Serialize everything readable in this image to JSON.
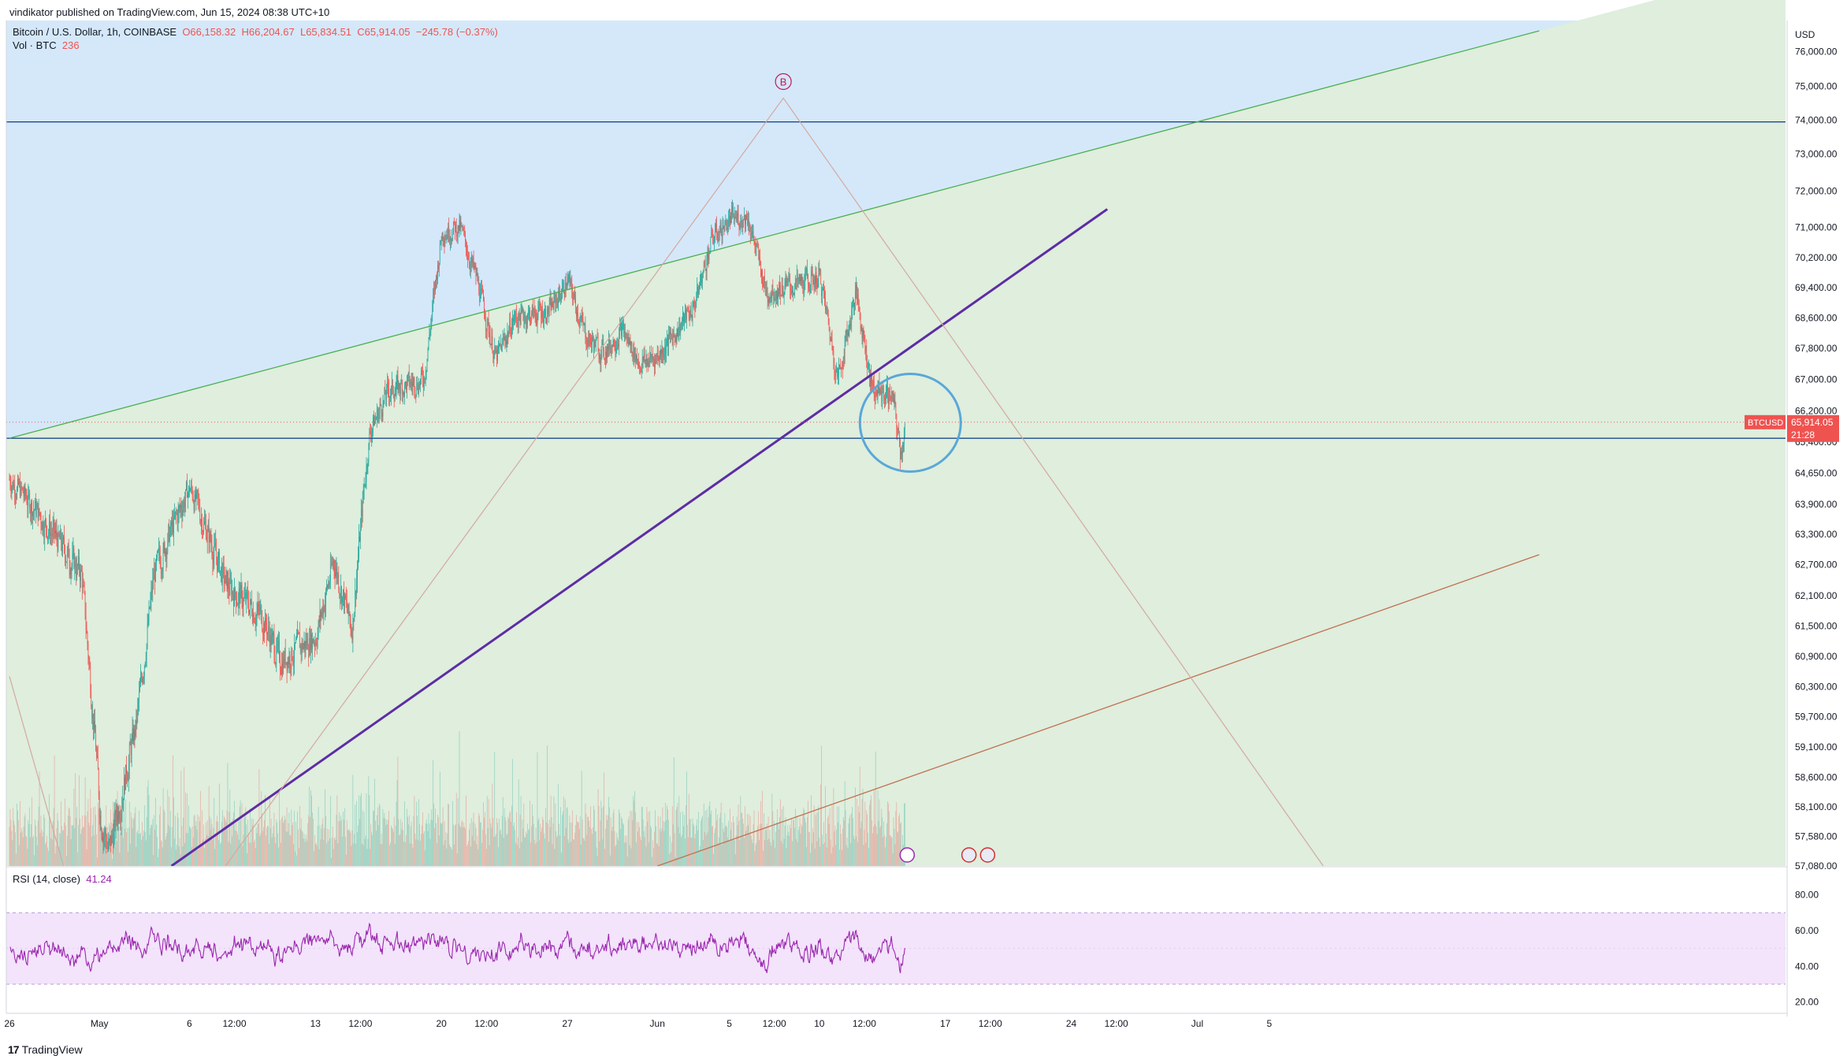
{
  "header": "vindikator published on TradingView.com, Jun 15, 2024 08:38 UTC+10",
  "legend": {
    "symbol": "Bitcoin / U.S. Dollar, 1h, COINBASE",
    "open": "O66,158.32",
    "high": "H66,204.67",
    "low": "L65,834.51",
    "close": "C65,914.05",
    "change": "−245.78 (−0.37%)",
    "vol_label": "Vol · BTC",
    "vol_value": "236",
    "rsi_label": "RSI (14, close)",
    "rsi_value": "41.24"
  },
  "price_axis": {
    "currency": "USD",
    "ticks": [
      "76,000.00",
      "75,000.00",
      "74,000.00",
      "73,000.00",
      "72,000.00",
      "71,000.00",
      "70,200.00",
      "69,400.00",
      "68,600.00",
      "67,800.00",
      "67,000.00",
      "66,200.00",
      "65,400.00",
      "64,650.00",
      "63,900.00",
      "63,300.00",
      "62,700.00",
      "62,100.00",
      "61,500.00",
      "60,900.00",
      "60,300.00",
      "59,700.00",
      "59,100.00",
      "58,600.00",
      "58,100.00",
      "57,580.00",
      "57,080.00"
    ],
    "last_symbol": "BTCUSD",
    "last_price": "65,914.05",
    "countdown": "21:28"
  },
  "rsi_axis": {
    "ticks": [
      "80.00",
      "60.00",
      "40.00",
      "20.00"
    ]
  },
  "time_axis": {
    "ticks": [
      "26",
      "May",
      "6",
      "12:00",
      "13",
      "12:00",
      "20",
      "12:00",
      "27",
      "Jun",
      "5",
      "12:00",
      "10",
      "12:00",
      "17",
      "12:00",
      "24",
      "12:00",
      "Jul",
      "5"
    ]
  },
  "annotation": {
    "wave_label": "B"
  },
  "colors": {
    "up": "#26a69a",
    "down": "#ef5350",
    "purple_line": "#5e2ca5",
    "green_line": "#4caf50",
    "brown_line": "#c0704f",
    "blue_line": "#1e4a8c",
    "sky": "#d4e8fa",
    "grass": "#dfeedd",
    "rsi": "#9c27b0",
    "rsi_band": "#f3e3fb"
  },
  "footer": {
    "brand": "TradingView"
  },
  "chart_data": {
    "type": "candlestick",
    "symbol": "Bitcoin / U.S. Dollar",
    "interval": "1h",
    "exchange": "COINBASE",
    "ylim": [
      57080,
      76300
    ],
    "x_range": [
      "Apr 26 2024",
      "Jul 5 2024"
    ],
    "path_points": [
      {
        "t": "Apr 26",
        "price": 64500
      },
      {
        "t": "Apr 28",
        "price": 63500
      },
      {
        "t": "Apr 30",
        "price": 62500
      },
      {
        "t": "May 1",
        "price": 58000
      },
      {
        "t": "May 1 12:00",
        "price": 57300
      },
      {
        "t": "May 3",
        "price": 59500
      },
      {
        "t": "May 4",
        "price": 62500
      },
      {
        "t": "May 6",
        "price": 64300
      },
      {
        "t": "May 8",
        "price": 62300
      },
      {
        "t": "May 10",
        "price": 61700
      },
      {
        "t": "May 11",
        "price": 60800
      },
      {
        "t": "May 13",
        "price": 61300
      },
      {
        "t": "May 14",
        "price": 62800
      },
      {
        "t": "May 15",
        "price": 61400
      },
      {
        "t": "May 16",
        "price": 65700
      },
      {
        "t": "May 17",
        "price": 66700
      },
      {
        "t": "May 19",
        "price": 67000
      },
      {
        "t": "May 20",
        "price": 70900
      },
      {
        "t": "May 21",
        "price": 71000
      },
      {
        "t": "May 22",
        "price": 69500
      },
      {
        "t": "May 23",
        "price": 67500
      },
      {
        "t": "May 24",
        "price": 68600
      },
      {
        "t": "May 26",
        "price": 68800
      },
      {
        "t": "May 27",
        "price": 69600
      },
      {
        "t": "May 28",
        "price": 68100
      },
      {
        "t": "May 29",
        "price": 67700
      },
      {
        "t": "May 30",
        "price": 68300
      },
      {
        "t": "May 31",
        "price": 67400
      },
      {
        "t": "Jun 1",
        "price": 67600
      },
      {
        "t": "Jun 3",
        "price": 68900
      },
      {
        "t": "Jun 4",
        "price": 70700
      },
      {
        "t": "Jun 5",
        "price": 71200
      },
      {
        "t": "Jun 6",
        "price": 71300
      },
      {
        "t": "Jun 7",
        "price": 69300
      },
      {
        "t": "Jun 9",
        "price": 69500
      },
      {
        "t": "Jun 10",
        "price": 69700
      },
      {
        "t": "Jun 11",
        "price": 67000
      },
      {
        "t": "Jun 12",
        "price": 69300
      },
      {
        "t": "Jun 12 18:00",
        "price": 67200
      },
      {
        "t": "Jun 13",
        "price": 66700
      },
      {
        "t": "Jun 14",
        "price": 66600
      },
      {
        "t": "Jun 14 12:00",
        "price": 65100
      },
      {
        "t": "Jun 14 18:00",
        "price": 65914.05
      }
    ],
    "drawings": [
      {
        "type": "horizontal_line",
        "price": 73950
      },
      {
        "type": "horizontal_line",
        "price": 65500
      },
      {
        "type": "trendline",
        "name": "purple",
        "from": {
          "t": "May 5",
          "price": 57080
        },
        "to": {
          "t": "Jun 26",
          "price": 71500
        }
      },
      {
        "type": "trendline",
        "name": "green",
        "from": {
          "t": "Apr 26",
          "price": 65500
        },
        "to": {
          "t": "Jul 20",
          "price": 76200
        }
      },
      {
        "type": "trendline",
        "name": "brown",
        "from": {
          "t": "Jun 1",
          "price": 57080
        },
        "to": {
          "t": "Jul 20",
          "price": 62900
        }
      },
      {
        "type": "wave",
        "label": "B",
        "peak": {
          "t": "Jun 8",
          "price": 74650
        }
      }
    ],
    "rsi": {
      "period": 14,
      "last": 41.24,
      "bands": [
        70,
        30
      ],
      "ylim": [
        15,
        90
      ]
    }
  }
}
